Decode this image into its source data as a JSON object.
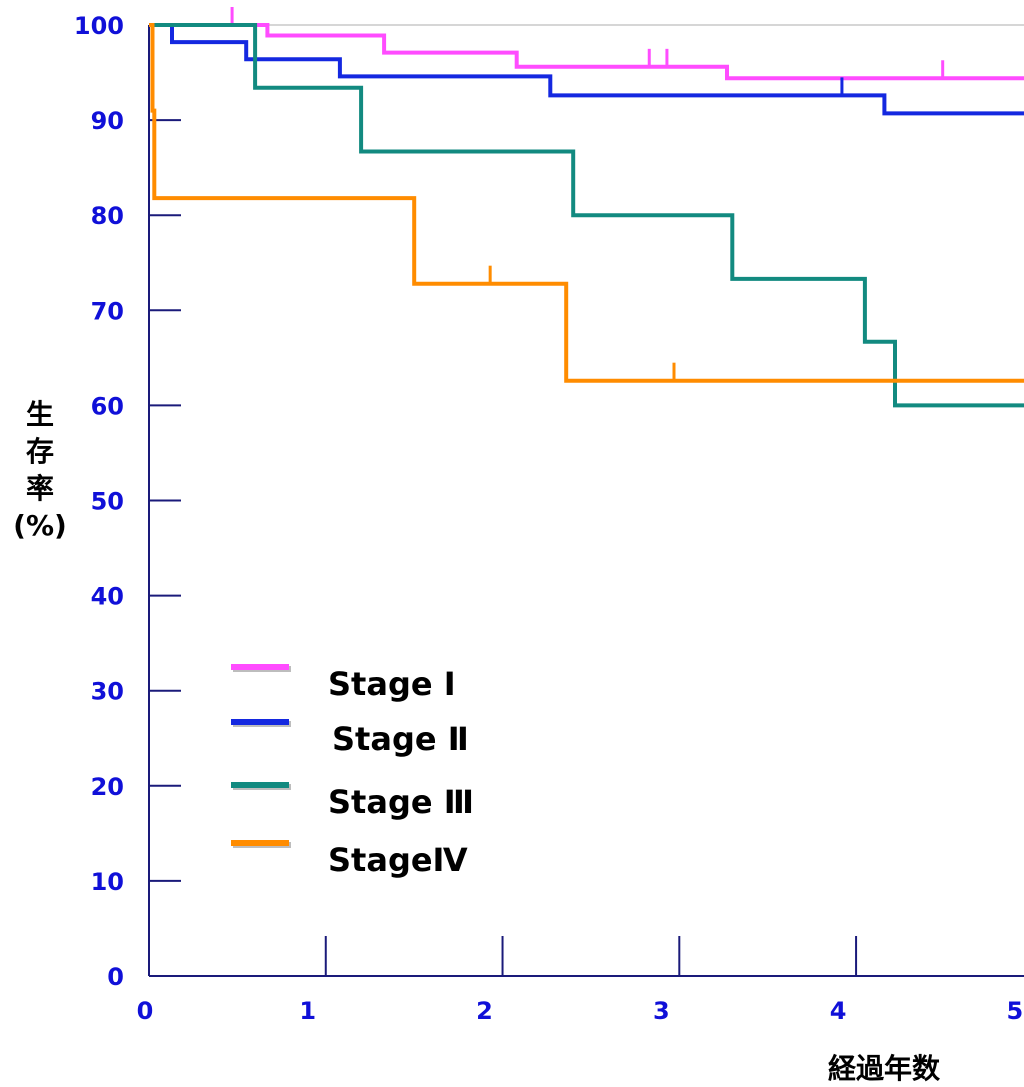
{
  "chart_data": {
    "type": "line",
    "step": true,
    "title": "",
    "xlabel": "経過年数",
    "ylabel": "生存率(%)",
    "xlim": [
      0,
      5
    ],
    "ylim": [
      0,
      100
    ],
    "xticks": [
      "0",
      "1",
      "2",
      "3",
      "4",
      "5"
    ],
    "yticks": [
      "0",
      "10",
      "20",
      "30",
      "40",
      "50",
      "60",
      "70",
      "80",
      "90",
      "100"
    ],
    "grid": false,
    "legend_position": "lower-left",
    "series": [
      {
        "name": "Stage Ⅰ",
        "color": "#ff4cff",
        "points": [
          [
            0,
            100
          ],
          [
            0.67,
            100
          ],
          [
            0.67,
            98.9
          ],
          [
            1.33,
            98.9
          ],
          [
            1.33,
            97.1
          ],
          [
            2.08,
            97.1
          ],
          [
            2.08,
            95.6
          ],
          [
            3.27,
            95.6
          ],
          [
            3.27,
            94.4
          ],
          [
            4.98,
            94.4
          ],
          [
            4.98,
            92.8
          ],
          [
            5,
            92.8
          ]
        ],
        "censor": [
          0.47,
          2.83,
          2.93,
          4.49
        ]
      },
      {
        "name": "Stage Ⅱ",
        "color": "#1428e0",
        "points": [
          [
            0,
            100
          ],
          [
            0.13,
            100
          ],
          [
            0.13,
            98.2
          ],
          [
            0.55,
            98.2
          ],
          [
            0.55,
            96.4
          ],
          [
            1.08,
            96.4
          ],
          [
            1.08,
            94.6
          ],
          [
            2.27,
            94.6
          ],
          [
            2.27,
            92.6
          ],
          [
            4.16,
            92.6
          ],
          [
            4.16,
            90.7
          ],
          [
            5,
            90.7
          ]
        ],
        "censor": [
          3.92
        ]
      },
      {
        "name": "Stage Ⅲ",
        "color": "#128a80",
        "points": [
          [
            0,
            100
          ],
          [
            0.6,
            100
          ],
          [
            0.6,
            93.4
          ],
          [
            1.2,
            93.4
          ],
          [
            1.2,
            86.7
          ],
          [
            2.4,
            86.7
          ],
          [
            2.4,
            80
          ],
          [
            3.3,
            80
          ],
          [
            3.3,
            73.3
          ],
          [
            4.05,
            73.3
          ],
          [
            4.05,
            66.7
          ],
          [
            4.22,
            66.7
          ],
          [
            4.22,
            60
          ],
          [
            5,
            60
          ]
        ],
        "censor": []
      },
      {
        "name": "StageⅣ",
        "color": "#ff8c00",
        "points": [
          [
            0,
            100
          ],
          [
            0.02,
            100
          ],
          [
            0.02,
            91
          ],
          [
            0.03,
            91
          ],
          [
            0.03,
            81.8
          ],
          [
            1.5,
            81.8
          ],
          [
            1.5,
            72.8
          ],
          [
            2.36,
            72.8
          ],
          [
            2.36,
            62.6
          ],
          [
            5,
            62.6
          ]
        ],
        "censor": [
          1.93,
          2.97
        ]
      }
    ]
  }
}
